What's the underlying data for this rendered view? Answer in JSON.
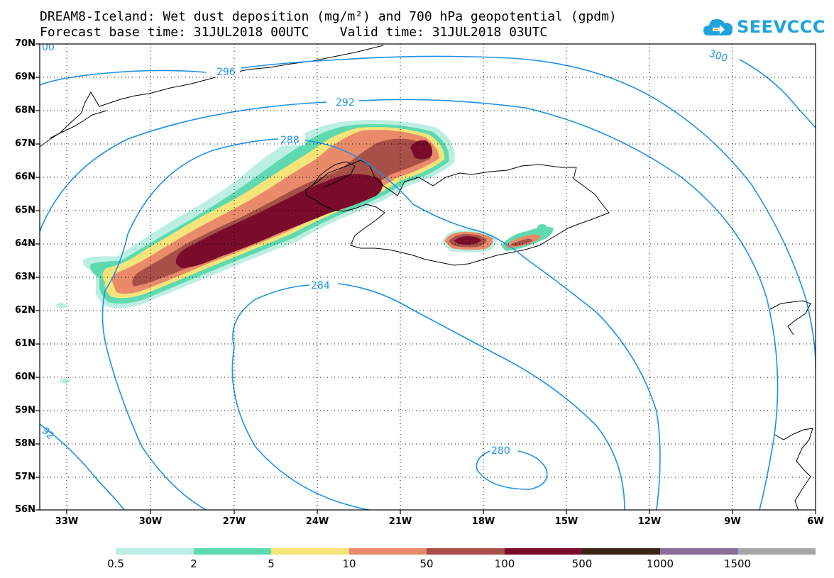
{
  "header": {
    "title_line1": "DREAM8-Iceland: Wet dust deposition (mg/m²) and 700 hPa geopotential (gpdm)",
    "base_time": "Forecast base time: 31JUL2018 00UTC",
    "valid_time": "Valid time: 31JUL2018 03UTC"
  },
  "logo": {
    "text": "SEEVCCC",
    "icon": "cloud-arrow-icon",
    "color": "#1fa3dc"
  },
  "axes": {
    "lat_labels": [
      "70N",
      "69N",
      "68N",
      "67N",
      "66N",
      "65N",
      "64N",
      "63N",
      "62N",
      "61N",
      "60N",
      "59N",
      "58N",
      "57N",
      "56N"
    ],
    "lon_labels": [
      "33W",
      "30W",
      "27W",
      "24W",
      "21W",
      "18W",
      "15W",
      "12W",
      "9W",
      "6W"
    ]
  },
  "contours": {
    "color": "#1e90e6",
    "labels": [
      "296",
      "292",
      "288",
      "284",
      "280",
      "300",
      "92",
      "00"
    ]
  },
  "legend": {
    "labels": [
      "0.5",
      "2",
      "5",
      "10",
      "50",
      "100",
      "500",
      "1000",
      "1500"
    ],
    "colors": [
      "#bdeee2",
      "#5fd9b0",
      "#f6e47a",
      "#e98b6a",
      "#a84f48",
      "#7a0b2a",
      "#3c2416",
      "#8a6d9c",
      "#a6a6a6"
    ]
  }
}
